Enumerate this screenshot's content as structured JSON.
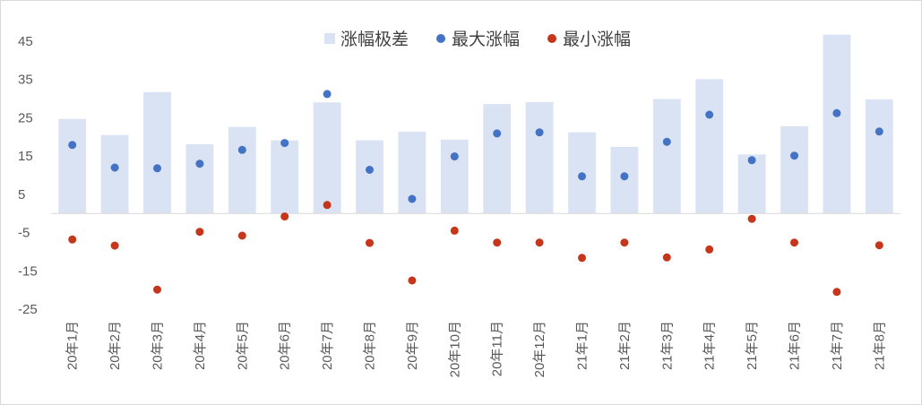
{
  "chart_data": {
    "type": "bar",
    "categories": [
      "20年1月",
      "20年2月",
      "20年3月",
      "20年4月",
      "20年5月",
      "20年6月",
      "20年7月",
      "20年8月",
      "20年9月",
      "20年10月",
      "20年11月",
      "20年12月",
      "21年1月",
      "21年2月",
      "21年3月",
      "21年4月",
      "21年5月",
      "21年6月",
      "21年7月",
      "21年8月"
    ],
    "series": [
      {
        "name": "涨幅极差",
        "type": "bar",
        "values": [
          24.7,
          20.5,
          31.7,
          18.1,
          22.6,
          19.1,
          29.0,
          19.1,
          21.4,
          19.3,
          28.6,
          29.1,
          21.2,
          17.4,
          29.9,
          35.1,
          15.4,
          22.8,
          46.7,
          29.8
        ]
      },
      {
        "name": "最大涨幅",
        "type": "scatter",
        "values": [
          17.9,
          12.0,
          11.8,
          13.0,
          16.6,
          18.4,
          31.2,
          11.4,
          3.8,
          14.9,
          20.9,
          21.2,
          9.7,
          9.7,
          18.7,
          25.8,
          13.9,
          15.1,
          26.2,
          21.4
        ]
      },
      {
        "name": "最小涨幅",
        "type": "scatter",
        "values": [
          -6.8,
          -8.4,
          -19.9,
          -4.8,
          -5.8,
          -0.8,
          2.2,
          -7.7,
          -17.5,
          -4.5,
          -7.6,
          -7.6,
          -11.6,
          -7.6,
          -11.5,
          -9.4,
          -1.4,
          -7.6,
          -20.5,
          -8.3
        ]
      }
    ],
    "yticks": [
      "45",
      "35",
      "25",
      "15",
      "5",
      "-5",
      "-15",
      "-25"
    ],
    "ylim": [
      -25,
      45
    ],
    "legend": "top-center",
    "grid": false,
    "colors": {
      "bar": "#dae3f3",
      "max": "#4472c4",
      "min": "#c5361a",
      "axis": "#d9d9d9"
    }
  }
}
